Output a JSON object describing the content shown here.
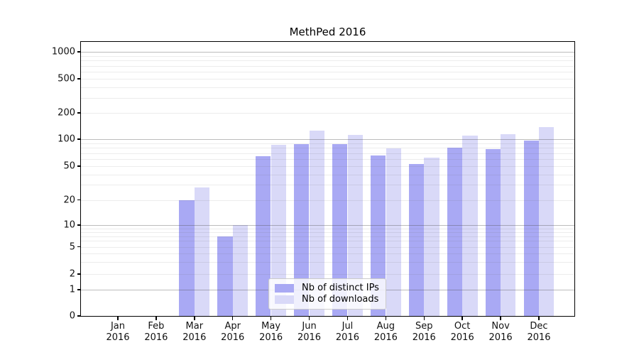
{
  "chart_data": {
    "type": "bar",
    "title": "MethPed 2016",
    "categories": [
      {
        "label": "Jan",
        "year": "2016"
      },
      {
        "label": "Feb",
        "year": "2016"
      },
      {
        "label": "Mar",
        "year": "2016"
      },
      {
        "label": "Apr",
        "year": "2016"
      },
      {
        "label": "May",
        "year": "2016"
      },
      {
        "label": "Jun",
        "year": "2016"
      },
      {
        "label": "Jul",
        "year": "2016"
      },
      {
        "label": "Aug",
        "year": "2016"
      },
      {
        "label": "Sep",
        "year": "2016"
      },
      {
        "label": "Oct",
        "year": "2016"
      },
      {
        "label": "Nov",
        "year": "2016"
      },
      {
        "label": "Dec",
        "year": "2016"
      }
    ],
    "series": [
      {
        "name": "Nb of distinct IPs",
        "color": "#a9a9f4",
        "values": [
          0,
          0,
          20,
          7,
          64,
          88,
          88,
          66,
          53,
          81,
          77,
          97
        ]
      },
      {
        "name": "Nb of downloads",
        "color": "#d9d9f8",
        "values": [
          0,
          0,
          28,
          10,
          87,
          125,
          111,
          79,
          62,
          110,
          115,
          138
        ]
      }
    ],
    "y_axis": {
      "scale": "symlog",
      "ylim": [
        0,
        1300
      ],
      "grid": "major and minor log gridlines",
      "ticks": [
        {
          "value": 0,
          "label": "0"
        },
        {
          "value": 1,
          "label": "1"
        },
        {
          "value": 2,
          "label": "2"
        },
        {
          "value": 5,
          "label": "5"
        },
        {
          "value": 10,
          "label": "10"
        },
        {
          "value": 20,
          "label": "20"
        },
        {
          "value": 50,
          "label": "50"
        },
        {
          "value": 100,
          "label": "100"
        },
        {
          "value": 200,
          "label": "200"
        },
        {
          "value": 500,
          "label": "500"
        },
        {
          "value": 1000,
          "label": "1000"
        }
      ]
    },
    "legend": {
      "position": "lower center inside plot"
    }
  }
}
